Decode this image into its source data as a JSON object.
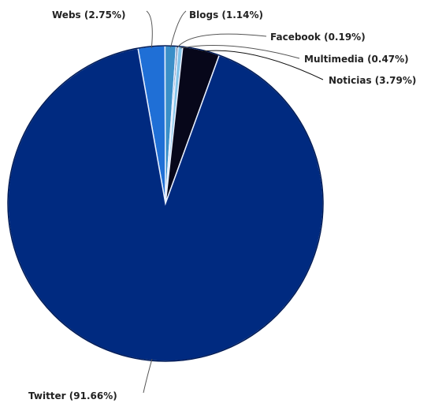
{
  "chart_data": {
    "type": "pie",
    "title": "",
    "slices": [
      {
        "label": "Twitter (91.66%)",
        "value": 91.66,
        "color": "#002a80"
      },
      {
        "label": "Webs (2.75%)",
        "value": 2.75,
        "color": "#1f6fd6"
      },
      {
        "label": "Blogs (1.14%)",
        "value": 1.14,
        "color": "#3a8fc8"
      },
      {
        "label": "Facebook (0.19%)",
        "value": 0.19,
        "color": "#2f4f7a"
      },
      {
        "label": "Multimedia (0.47%)",
        "value": 0.47,
        "color": "#84c4e8"
      },
      {
        "label": "Noticias (3.79%)",
        "value": 3.79,
        "color": "#07071a"
      }
    ],
    "legend": "none"
  }
}
